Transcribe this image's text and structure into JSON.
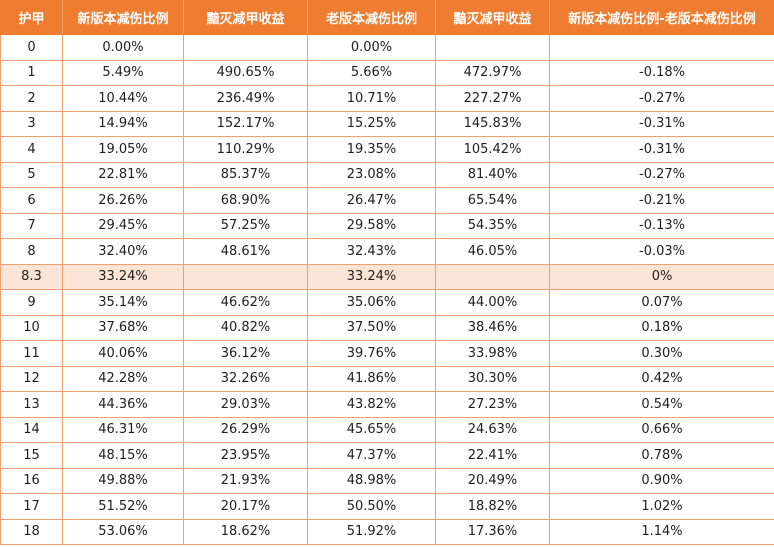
{
  "table": {
    "headers": [
      "护甲",
      "新版本减伤比例",
      "黯灭减甲收益",
      "老版本减伤比例",
      "黯灭减甲收益",
      "新版本减伤比例-老版本减伤比例"
    ],
    "rows": [
      {
        "armor": "0",
        "new_reduction": "0.00%",
        "new_gain": "",
        "old_reduction": "0.00%",
        "old_gain": "",
        "diff": "",
        "highlight": false
      },
      {
        "armor": "1",
        "new_reduction": "5.49%",
        "new_gain": "490.65%",
        "old_reduction": "5.66%",
        "old_gain": "472.97%",
        "diff": "-0.18%",
        "highlight": false
      },
      {
        "armor": "2",
        "new_reduction": "10.44%",
        "new_gain": "236.49%",
        "old_reduction": "10.71%",
        "old_gain": "227.27%",
        "diff": "-0.27%",
        "highlight": false
      },
      {
        "armor": "3",
        "new_reduction": "14.94%",
        "new_gain": "152.17%",
        "old_reduction": "15.25%",
        "old_gain": "145.83%",
        "diff": "-0.31%",
        "highlight": false
      },
      {
        "armor": "4",
        "new_reduction": "19.05%",
        "new_gain": "110.29%",
        "old_reduction": "19.35%",
        "old_gain": "105.42%",
        "diff": "-0.31%",
        "highlight": false
      },
      {
        "armor": "5",
        "new_reduction": "22.81%",
        "new_gain": "85.37%",
        "old_reduction": "23.08%",
        "old_gain": "81.40%",
        "diff": "-0.27%",
        "highlight": false
      },
      {
        "armor": "6",
        "new_reduction": "26.26%",
        "new_gain": "68.90%",
        "old_reduction": "26.47%",
        "old_gain": "65.54%",
        "diff": "-0.21%",
        "highlight": false
      },
      {
        "armor": "7",
        "new_reduction": "29.45%",
        "new_gain": "57.25%",
        "old_reduction": "29.58%",
        "old_gain": "54.35%",
        "diff": "-0.13%",
        "highlight": false
      },
      {
        "armor": "8",
        "new_reduction": "32.40%",
        "new_gain": "48.61%",
        "old_reduction": "32.43%",
        "old_gain": "46.05%",
        "diff": "-0.03%",
        "highlight": false
      },
      {
        "armor": "8.3",
        "new_reduction": "33.24%",
        "new_gain": "",
        "old_reduction": "33.24%",
        "old_gain": "",
        "diff": "0%",
        "highlight": true
      },
      {
        "armor": "9",
        "new_reduction": "35.14%",
        "new_gain": "46.62%",
        "old_reduction": "35.06%",
        "old_gain": "44.00%",
        "diff": "0.07%",
        "highlight": false
      },
      {
        "armor": "10",
        "new_reduction": "37.68%",
        "new_gain": "40.82%",
        "old_reduction": "37.50%",
        "old_gain": "38.46%",
        "diff": "0.18%",
        "highlight": false
      },
      {
        "armor": "11",
        "new_reduction": "40.06%",
        "new_gain": "36.12%",
        "old_reduction": "39.76%",
        "old_gain": "33.98%",
        "diff": "0.30%",
        "highlight": false
      },
      {
        "armor": "12",
        "new_reduction": "42.28%",
        "new_gain": "32.26%",
        "old_reduction": "41.86%",
        "old_gain": "30.30%",
        "diff": "0.42%",
        "highlight": false
      },
      {
        "armor": "13",
        "new_reduction": "44.36%",
        "new_gain": "29.03%",
        "old_reduction": "43.82%",
        "old_gain": "27.23%",
        "diff": "0.54%",
        "highlight": false
      },
      {
        "armor": "14",
        "new_reduction": "46.31%",
        "new_gain": "26.29%",
        "old_reduction": "45.65%",
        "old_gain": "24.63%",
        "diff": "0.66%",
        "highlight": false
      },
      {
        "armor": "15",
        "new_reduction": "48.15%",
        "new_gain": "23.95%",
        "old_reduction": "47.37%",
        "old_gain": "22.41%",
        "diff": "0.78%",
        "highlight": false
      },
      {
        "armor": "16",
        "new_reduction": "49.88%",
        "new_gain": "21.93%",
        "old_reduction": "48.98%",
        "old_gain": "20.49%",
        "diff": "0.90%",
        "highlight": false
      },
      {
        "armor": "17",
        "new_reduction": "51.52%",
        "new_gain": "20.17%",
        "old_reduction": "50.50%",
        "old_gain": "18.82%",
        "diff": "1.02%",
        "highlight": false
      },
      {
        "armor": "18",
        "new_reduction": "53.06%",
        "new_gain": "18.62%",
        "old_reduction": "51.92%",
        "old_gain": "17.36%",
        "diff": "1.14%",
        "highlight": false
      }
    ]
  },
  "colors": {
    "header_background": "#ef7d31",
    "header_text": "#ffffff",
    "border": "#f0a070",
    "highlight_row": "#fce4d6"
  }
}
